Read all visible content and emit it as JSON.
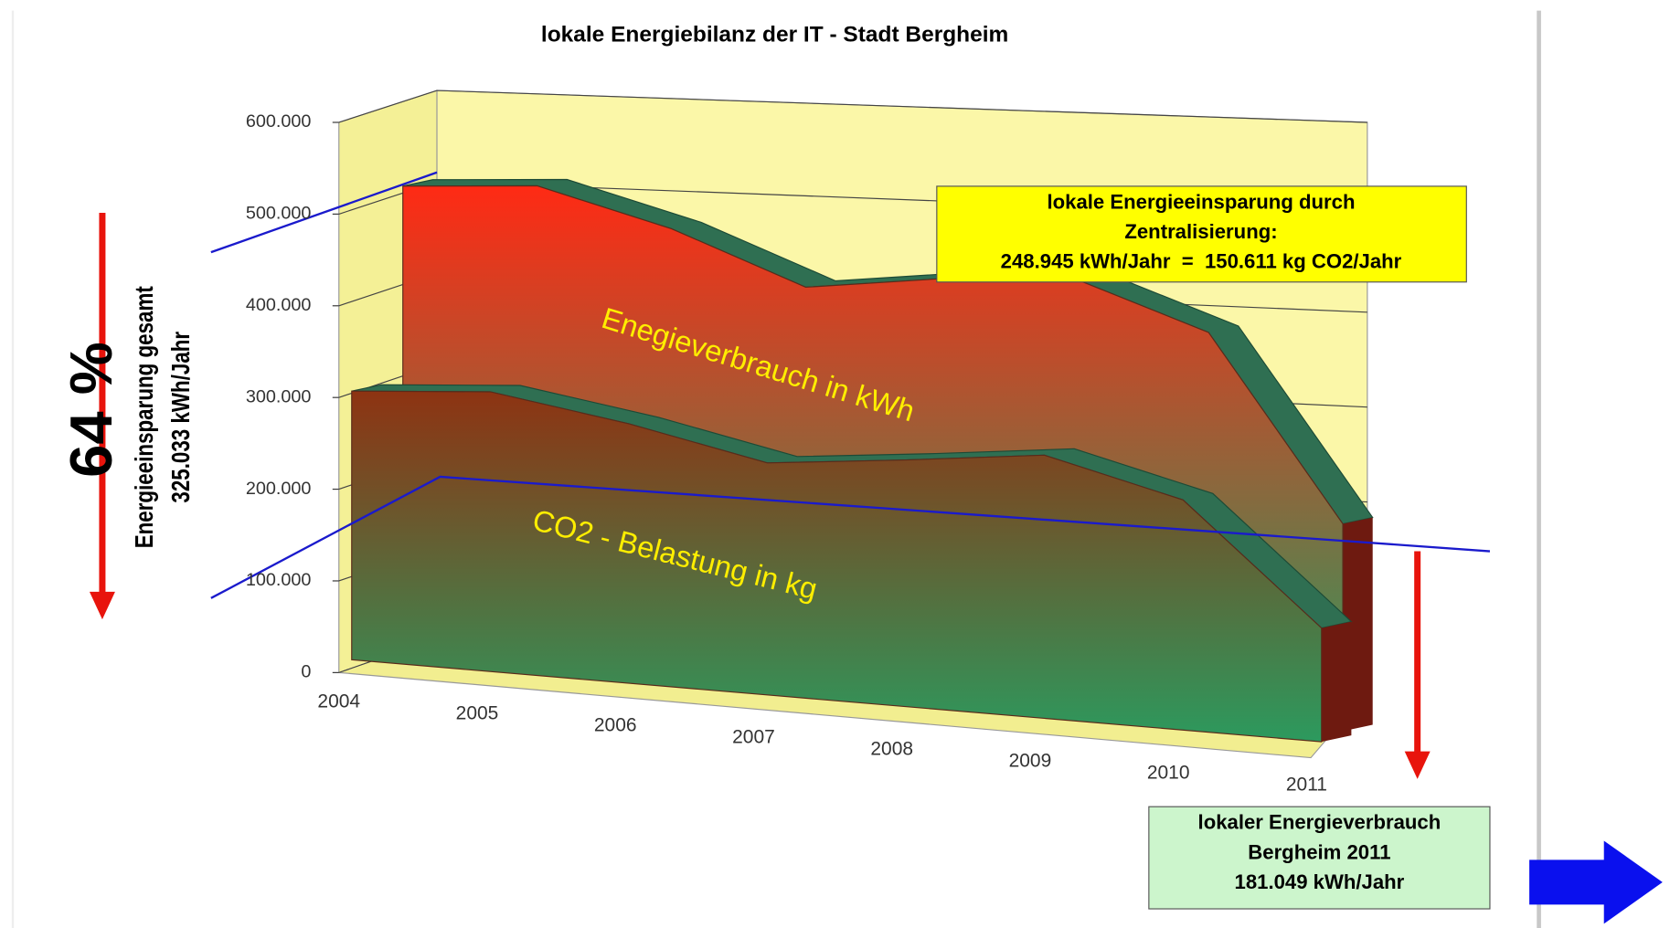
{
  "chart_data": {
    "type": "area3d",
    "title": "lokale Energiebilanz der IT - Stadt Bergheim",
    "categories": [
      "2004",
      "2005",
      "2006",
      "2007",
      "2008",
      "2009",
      "2010",
      "2011"
    ],
    "series": [
      {
        "name": "Enegieverbrauch in kWh",
        "color": "#ff2a14",
        "values": [
          505000,
          518000,
          484000,
          433000,
          455000,
          468000,
          422000,
          226000
        ]
      },
      {
        "name": "CO2 - Belastung in kg",
        "color": "#8e3312",
        "values": [
          293000,
          305000,
          283000,
          253000,
          269000,
          287000,
          251000,
          124000
        ]
      }
    ],
    "ylim": [
      0,
      600000
    ],
    "yticks": [
      0,
      {
        "value": 100000,
        "label": "100.000"
      },
      {
        "value": 200000,
        "label": "200.000"
      },
      {
        "value": 300000,
        "label": "300.000"
      },
      {
        "value": 400000,
        "label": "400.000"
      },
      {
        "value": 500000,
        "label": "500.000"
      },
      {
        "value": 600000,
        "label": "600.000"
      }
    ],
    "grid": true,
    "annotations": {
      "savings_box": [
        "lokale Energieeinsparung durch",
        "Zentralisierung:",
        "248.945 kWh/Jahr  =  150.611 kg CO2/Jahr"
      ],
      "consumption_box": [
        "lokaler Energieverbrauch",
        "Bergheim 2011",
        "181.049 kWh/Jahr"
      ],
      "percent": "64 %",
      "total_savings": [
        "Energieeinsparung gesamt",
        "325.033 kWh/Jahr"
      ]
    }
  }
}
